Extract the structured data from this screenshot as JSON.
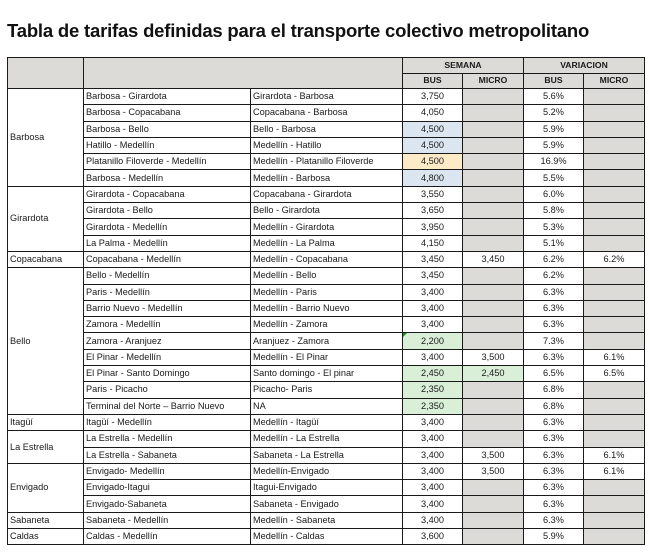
{
  "title": "Tabla de tarifas definidas para el transporte colectivo metropolitano",
  "header": {
    "semana": "SEMANA",
    "variacion": "VARIACION",
    "bus": "BUS",
    "micro": "MICRO"
  },
  "colors": {
    "header_gray": "#dcdbd7",
    "empty_gray": "#dcdbd7",
    "highlight_blue": "#dce6f1",
    "highlight_yellow": "#fdebc8",
    "highlight_green": "#daefd8"
  },
  "groups": [
    {
      "municipio": "Barbosa",
      "rows": [
        {
          "ida": "Barbosa - Girardota",
          "vuelta": "Girardota - Barbosa",
          "bus": "3,750",
          "micro": "",
          "var_bus": "5.6%",
          "var_micro": "",
          "bus_color": "",
          "micro_color": "gray"
        },
        {
          "ida": "Barbosa - Copacabana",
          "vuelta": "Copacabana - Barbosa",
          "bus": "4,050",
          "micro": "",
          "var_bus": "5.2%",
          "var_micro": "",
          "bus_color": "",
          "micro_color": "gray"
        },
        {
          "ida": "Barbosa - Bello",
          "vuelta": "Bello -  Barbosa",
          "bus": "4,500",
          "micro": "",
          "var_bus": "5.9%",
          "var_micro": "",
          "bus_color": "blue",
          "micro_color": "gray"
        },
        {
          "ida": "Hatillo - Medellín",
          "vuelta": "Medellín - Hatillo",
          "bus": "4,500",
          "micro": "",
          "var_bus": "5.9%",
          "var_micro": "",
          "bus_color": "blue",
          "micro_color": "gray"
        },
        {
          "ida": "Platanillo Filoverde - Medellín",
          "vuelta": "Medellín - Platanillo Filoverde",
          "bus": "4,500",
          "micro": "",
          "var_bus": "16.9%",
          "var_micro": "",
          "bus_color": "yellow",
          "micro_color": "gray"
        },
        {
          "ida": "Barbosa - Medellín",
          "vuelta": "Medellín - Barbosa",
          "bus": "4,800",
          "micro": "",
          "var_bus": "5.5%",
          "var_micro": "",
          "bus_color": "blue",
          "micro_color": "gray"
        }
      ]
    },
    {
      "municipio": "Girardota",
      "rows": [
        {
          "ida": "Girardota - Copacabana",
          "vuelta": "Copacabana - Girardota",
          "bus": "3,550",
          "micro": "",
          "var_bus": "6.0%",
          "var_micro": "",
          "bus_color": "",
          "micro_color": "gray"
        },
        {
          "ida": "Girardota - Bello",
          "vuelta": "Bello - Girardota",
          "bus": "3,650",
          "micro": "",
          "var_bus": "5.8%",
          "var_micro": "",
          "bus_color": "",
          "micro_color": "gray"
        },
        {
          "ida": "Girardota - Medellín",
          "vuelta": "Medellín - Girardota",
          "bus": "3,950",
          "micro": "",
          "var_bus": "5.3%",
          "var_micro": "",
          "bus_color": "",
          "micro_color": "gray"
        },
        {
          "ida": "La Palma - Medellín",
          "vuelta": "Medellín - La Palma",
          "bus": "4,150",
          "micro": "",
          "var_bus": "5.1%",
          "var_micro": "",
          "bus_color": "",
          "micro_color": "gray"
        }
      ]
    },
    {
      "municipio": "Copacabana",
      "rows": [
        {
          "ida": "Copacabana - Medellín",
          "vuelta": "Medellín - Copacabana",
          "bus": "3,450",
          "micro": "3,450",
          "var_bus": "6.2%",
          "var_micro": "6.2%",
          "bus_color": "",
          "micro_color": ""
        }
      ]
    },
    {
      "municipio": "Bello",
      "rows": [
        {
          "ida": "Bello - Medellín",
          "vuelta": "Medellín - Bello",
          "bus": "3,450",
          "micro": "",
          "var_bus": "6.2%",
          "var_micro": "",
          "bus_color": "",
          "micro_color": "gray"
        },
        {
          "ida": "Paris - Medellín",
          "vuelta": "Medellín - Paris",
          "bus": "3,400",
          "micro": "",
          "var_bus": "6.3%",
          "var_micro": "",
          "bus_color": "",
          "micro_color": "gray"
        },
        {
          "ida": "Barrio Nuevo - Medellín",
          "vuelta": "Medellín - Barrio Nuevo",
          "bus": "3,400",
          "micro": "",
          "var_bus": "6.3%",
          "var_micro": "",
          "bus_color": "",
          "micro_color": "gray"
        },
        {
          "ida": "Zamora - Medellín",
          "vuelta": "Medellín - Zamora",
          "bus": "3,400",
          "micro": "",
          "var_bus": "6.3%",
          "var_micro": "",
          "bus_color": "",
          "micro_color": "gray"
        },
        {
          "ida": "Zamora - Aranjuez",
          "vuelta": "Aranjuez - Zamora",
          "bus": "2,200",
          "micro": "",
          "var_bus": "7.3%",
          "var_micro": "",
          "bus_color": "green marker",
          "micro_color": "gray"
        },
        {
          "ida": "El Pinar - Medellín",
          "vuelta": "Medellín - El Pinar",
          "bus": "3,400",
          "micro": "3,500",
          "var_bus": "6.3%",
          "var_micro": "6.1%",
          "bus_color": "",
          "micro_color": ""
        },
        {
          "ida": "El Pinar - Santo Domingo",
          "vuelta": "Santo domingo - El pinar",
          "bus": "2,450",
          "micro": "2,450",
          "var_bus": "6.5%",
          "var_micro": "6.5%",
          "bus_color": "green",
          "micro_color": "green"
        },
        {
          "ida": "Paris - Picacho",
          "vuelta": "Picacho- Paris",
          "bus": "2,350",
          "micro": "",
          "var_bus": "6.8%",
          "var_micro": "",
          "bus_color": "green",
          "micro_color": "gray"
        },
        {
          "ida": "Terminal del Norte – Barrio Nuevo",
          "vuelta": "NA",
          "bus": "2,350",
          "micro": "",
          "var_bus": "6.8%",
          "var_micro": "",
          "bus_color": "green",
          "micro_color": "gray"
        }
      ]
    },
    {
      "municipio": "Itagüí",
      "rows": [
        {
          "ida": "Itagüí - Medellín",
          "vuelta": "Medellín - Itagüí",
          "bus": "3,400",
          "micro": "",
          "var_bus": "6.3%",
          "var_micro": "",
          "bus_color": "",
          "micro_color": "gray"
        }
      ]
    },
    {
      "municipio": "La Estrella",
      "rows": [
        {
          "ida": "La Estrella - Medellín",
          "vuelta": " Medellín -  La Estrella",
          "bus": "3,400",
          "micro": "",
          "var_bus": "6.3%",
          "var_micro": "",
          "bus_color": "",
          "micro_color": "gray"
        },
        {
          "ida": "La Estrella - Sabaneta",
          "vuelta": "Sabaneta - La Estrella",
          "bus": "3,400",
          "micro": "3,500",
          "var_bus": "6.3%",
          "var_micro": "6.1%",
          "bus_color": "",
          "micro_color": ""
        }
      ]
    },
    {
      "municipio": "Envigado",
      "rows": [
        {
          "ida": "Envigado- Medellín",
          "vuelta": "Medellín-Envigado",
          "bus": "3,400",
          "micro": "3,500",
          "var_bus": "6.3%",
          "var_micro": "6.1%",
          "bus_color": "",
          "micro_color": ""
        },
        {
          "ida": "Envigado-Itagui",
          "vuelta": "Itagui-Envigado",
          "bus": "3,400",
          "micro": "",
          "var_bus": "6.3%",
          "var_micro": "",
          "bus_color": "",
          "micro_color": "gray"
        },
        {
          "ida": "Envigado-Sabaneta",
          "vuelta": "Sabaneta - Envigado",
          "bus": "3,400",
          "micro": "",
          "var_bus": "6.3%",
          "var_micro": "",
          "bus_color": "",
          "micro_color": "gray"
        }
      ]
    },
    {
      "municipio": "Sabaneta",
      "rows": [
        {
          "ida": "Sabaneta - Medellín",
          "vuelta": "Medellín - Sabaneta",
          "bus": "3,400",
          "micro": "",
          "var_bus": "6.3%",
          "var_micro": "",
          "bus_color": "",
          "micro_color": "gray"
        }
      ]
    },
    {
      "municipio": "Caldas",
      "rows": [
        {
          "ida": "Caldas - Medellín",
          "vuelta": "Medellín - Caldas",
          "bus": "3,600",
          "micro": "",
          "var_bus": "5.9%",
          "var_micro": "",
          "bus_color": "",
          "micro_color": "gray"
        }
      ]
    }
  ]
}
